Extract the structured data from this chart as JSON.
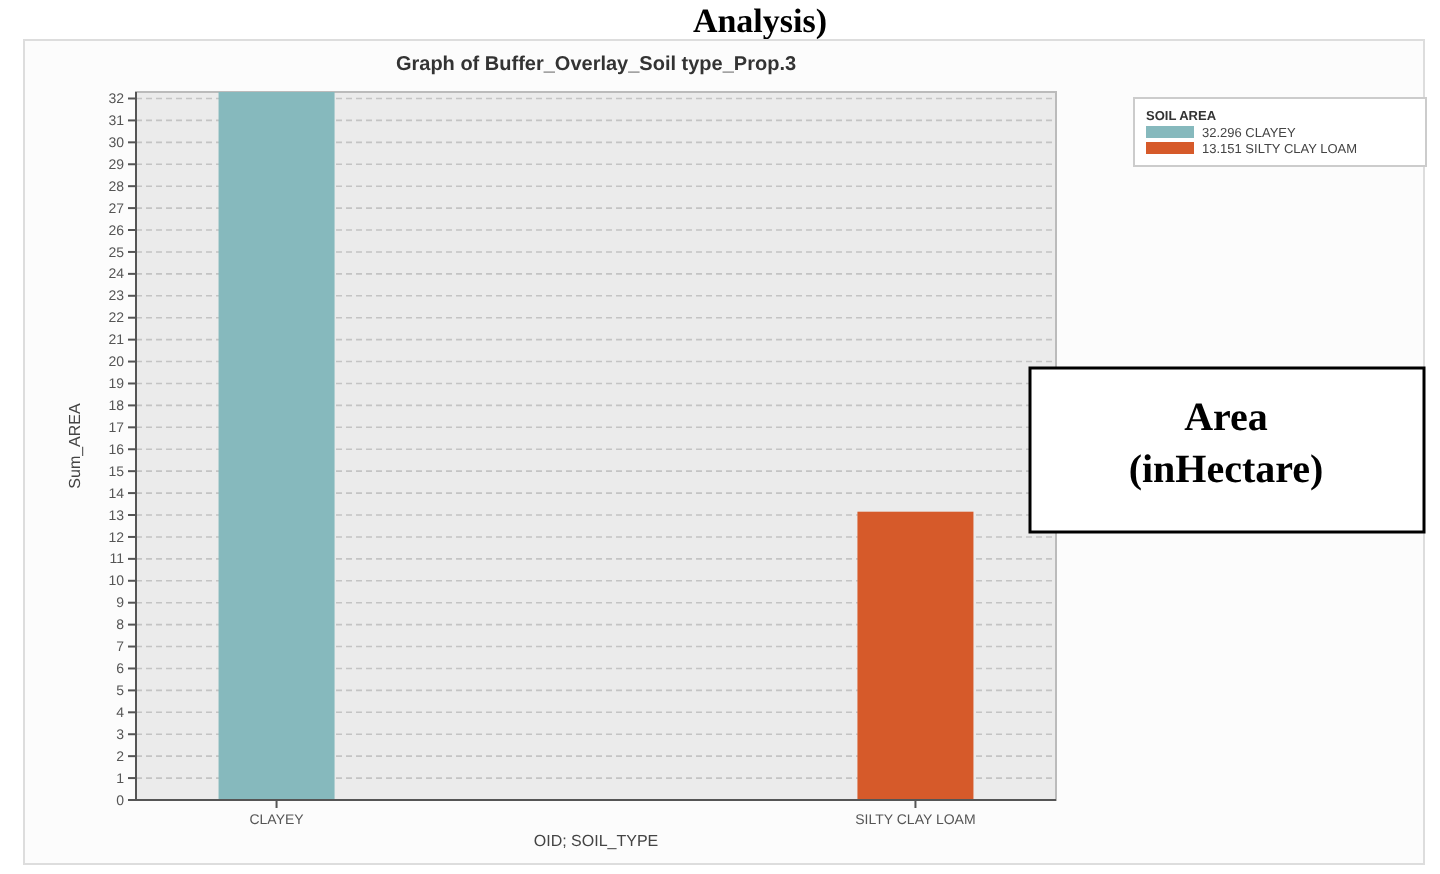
{
  "chart_data": {
    "type": "bar",
    "title": "Graph of Buffer_Overlay_Soil type_Prop.3",
    "xlabel": "OID; SOIL_TYPE",
    "ylabel": "Sum_AREA",
    "legend_title": "SOIL AREA",
    "categories": [
      "CLAYEY",
      "SILTY CLAY LOAM"
    ],
    "series": [
      {
        "name": "32.296 CLAYEY",
        "color": "#86b9bd",
        "values": [
          32.296,
          null
        ]
      },
      {
        "name": "13.151 SILTY CLAY LOAM",
        "color": "#d65a2a",
        "values": [
          null,
          13.151
        ]
      }
    ],
    "ylim": [
      0,
      32.296
    ],
    "yticks": [
      0,
      1,
      2,
      3,
      4,
      5,
      6,
      7,
      8,
      9,
      10,
      11,
      12,
      13,
      14,
      15,
      16,
      17,
      18,
      19,
      20,
      21,
      22,
      23,
      24,
      25,
      26,
      27,
      28,
      29,
      30,
      31,
      32
    ],
    "grid": "y",
    "legend": "top right",
    "annotations": [
      "Analysis)",
      "Area (inHectare)"
    ]
  }
}
